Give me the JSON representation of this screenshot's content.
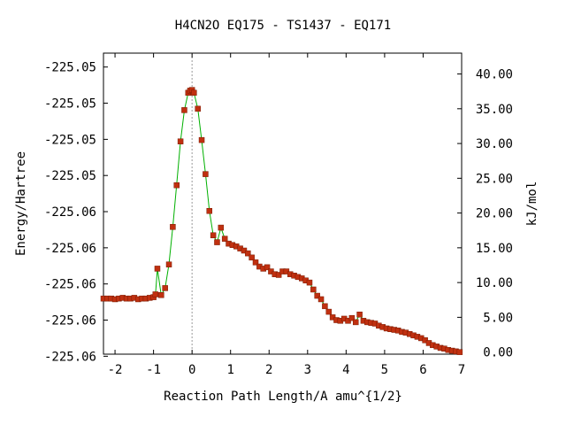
{
  "chart_data": {
    "type": "line",
    "title": "H4CN2O   EQ175 - TS1437 - EQ171",
    "xlabel": "Reaction Path Length/A amu^{1/2}",
    "ylabel_left": "Energy/Hartree",
    "ylabel_right": "kJ/mol",
    "xlim": [
      -2.3,
      7.0
    ],
    "ylim_kj": [
      -0.3,
      43.0
    ],
    "x_ticks": [
      -2,
      -1,
      0,
      1,
      2,
      3,
      4,
      5,
      6,
      7
    ],
    "x_tick_labels": [
      "-2",
      "-1",
      "0",
      "1",
      "2",
      "3",
      "4",
      "5",
      "6",
      "7"
    ],
    "left_ticks_kj": [
      -0.6,
      4.6,
      9.8,
      15.0,
      20.2,
      25.4,
      30.6,
      35.8,
      41.0
    ],
    "left_tick_labels": [
      "-225.06",
      "-225.06",
      "-225.06",
      "-225.06",
      "-225.06",
      "-225.05",
      "-225.05",
      "-225.05",
      "-225.05"
    ],
    "right_ticks": [
      0,
      5,
      10,
      15,
      20,
      25,
      30,
      35,
      40
    ],
    "right_tick_labels": [
      "0.00",
      "5.00",
      "10.00",
      "15.00",
      "20.00",
      "25.00",
      "30.00",
      "35.00",
      "40.00"
    ],
    "ts_x": 0,
    "grid": false,
    "line_color": "#00b000",
    "marker_color": "#c03010",
    "series": [
      {
        "points": [
          [
            -2.3,
            7.7
          ],
          [
            -2.2,
            7.7
          ],
          [
            -2.1,
            7.7
          ],
          [
            -2.0,
            7.6
          ],
          [
            -1.9,
            7.7
          ],
          [
            -1.8,
            7.8
          ],
          [
            -1.7,
            7.7
          ],
          [
            -1.6,
            7.7
          ],
          [
            -1.5,
            7.8
          ],
          [
            -1.4,
            7.6
          ],
          [
            -1.3,
            7.7
          ],
          [
            -1.2,
            7.7
          ],
          [
            -1.1,
            7.8
          ],
          [
            -1.0,
            7.9
          ],
          [
            -0.95,
            8.3
          ],
          [
            -0.9,
            12.0
          ],
          [
            -0.8,
            8.2
          ],
          [
            -0.7,
            9.2
          ],
          [
            -0.6,
            12.6
          ],
          [
            -0.5,
            18.0
          ],
          [
            -0.4,
            24.0
          ],
          [
            -0.3,
            30.3
          ],
          [
            -0.2,
            34.8
          ],
          [
            -0.1,
            37.3
          ],
          [
            -0.05,
            37.6
          ],
          [
            0.0,
            37.7
          ],
          [
            0.05,
            37.3
          ],
          [
            0.15,
            35.0
          ],
          [
            0.25,
            30.5
          ],
          [
            0.35,
            25.6
          ],
          [
            0.45,
            20.3
          ],
          [
            0.55,
            16.8
          ],
          [
            0.65,
            15.8
          ],
          [
            0.75,
            17.9
          ],
          [
            0.85,
            16.3
          ],
          [
            0.95,
            15.6
          ],
          [
            1.05,
            15.4
          ],
          [
            1.15,
            15.2
          ],
          [
            1.25,
            14.9
          ],
          [
            1.35,
            14.6
          ],
          [
            1.45,
            14.2
          ],
          [
            1.55,
            13.6
          ],
          [
            1.65,
            12.9
          ],
          [
            1.75,
            12.3
          ],
          [
            1.85,
            12.0
          ],
          [
            1.95,
            12.2
          ],
          [
            2.05,
            11.6
          ],
          [
            2.15,
            11.2
          ],
          [
            2.25,
            11.1
          ],
          [
            2.35,
            11.6
          ],
          [
            2.45,
            11.6
          ],
          [
            2.55,
            11.2
          ],
          [
            2.65,
            11.0
          ],
          [
            2.75,
            10.8
          ],
          [
            2.85,
            10.6
          ],
          [
            2.95,
            10.3
          ],
          [
            3.05,
            10.0
          ],
          [
            3.15,
            9.0
          ],
          [
            3.25,
            8.1
          ],
          [
            3.35,
            7.6
          ],
          [
            3.45,
            6.6
          ],
          [
            3.55,
            5.8
          ],
          [
            3.65,
            5.0
          ],
          [
            3.75,
            4.6
          ],
          [
            3.85,
            4.5
          ],
          [
            3.95,
            4.8
          ],
          [
            4.05,
            4.5
          ],
          [
            4.15,
            4.9
          ],
          [
            4.25,
            4.3
          ],
          [
            4.35,
            5.4
          ],
          [
            4.45,
            4.5
          ],
          [
            4.55,
            4.3
          ],
          [
            4.65,
            4.2
          ],
          [
            4.75,
            4.1
          ],
          [
            4.85,
            3.8
          ],
          [
            4.95,
            3.6
          ],
          [
            5.05,
            3.4
          ],
          [
            5.15,
            3.3
          ],
          [
            5.25,
            3.2
          ],
          [
            5.35,
            3.1
          ],
          [
            5.45,
            2.9
          ],
          [
            5.55,
            2.8
          ],
          [
            5.65,
            2.6
          ],
          [
            5.75,
            2.4
          ],
          [
            5.85,
            2.2
          ],
          [
            5.95,
            2.0
          ],
          [
            6.05,
            1.7
          ],
          [
            6.15,
            1.3
          ],
          [
            6.25,
            1.0
          ],
          [
            6.35,
            0.8
          ],
          [
            6.45,
            0.6
          ],
          [
            6.55,
            0.5
          ],
          [
            6.65,
            0.3
          ],
          [
            6.75,
            0.2
          ],
          [
            6.85,
            0.1
          ],
          [
            6.95,
            0.0
          ]
        ]
      }
    ]
  }
}
